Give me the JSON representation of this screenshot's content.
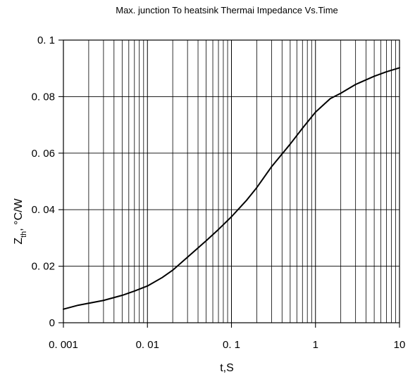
{
  "chart_data": {
    "type": "line",
    "title": "Max. junction To heatsink Thermai Impedance Vs.Time",
    "xlabel": "t,S",
    "ylabel": {
      "main": "Z",
      "sub": "th",
      "rest": ", °C/W"
    },
    "xscale": "log",
    "xlim": [
      0.001,
      10
    ],
    "ylim": [
      0,
      0.1
    ],
    "xticks": [
      {
        "value": 0.001,
        "label": "0. 001"
      },
      {
        "value": 0.01,
        "label": "0. 01"
      },
      {
        "value": 0.1,
        "label": "0. 1"
      },
      {
        "value": 1,
        "label": "1"
      },
      {
        "value": 10,
        "label": "10"
      }
    ],
    "yticks": [
      {
        "value": 0,
        "label": "0"
      },
      {
        "value": 0.02,
        "label": "0. 02"
      },
      {
        "value": 0.04,
        "label": "0. 04"
      },
      {
        "value": 0.06,
        "label": "0. 06"
      },
      {
        "value": 0.08,
        "label": "0. 08"
      },
      {
        "value": 0.1,
        "label": "0. 1"
      }
    ],
    "grid": true,
    "series": [
      {
        "color": "#000000",
        "x": [
          0.001,
          0.0015,
          0.002,
          0.003,
          0.005,
          0.007,
          0.01,
          0.015,
          0.02,
          0.03,
          0.05,
          0.07,
          0.1,
          0.15,
          0.2,
          0.3,
          0.5,
          0.7,
          1,
          1.5,
          2,
          3,
          5,
          7,
          10
        ],
        "y": [
          0.0048,
          0.0062,
          0.0069,
          0.0079,
          0.0097,
          0.0112,
          0.013,
          0.016,
          0.0186,
          0.0232,
          0.029,
          0.033,
          0.0375,
          0.0432,
          0.0478,
          0.0552,
          0.0632,
          0.0688,
          0.0745,
          0.0793,
          0.0812,
          0.0843,
          0.0872,
          0.0888,
          0.0902
        ]
      }
    ]
  }
}
